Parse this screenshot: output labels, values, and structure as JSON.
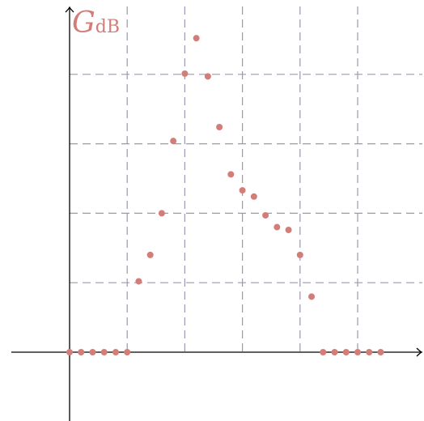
{
  "chart_data": {
    "type": "scatter",
    "ylabel_main": "G",
    "ylabel_sub": "dB",
    "xlabel": "",
    "title": "",
    "grid": true,
    "dot_color": "#d47d78",
    "grid_color": "#9a98b4",
    "axis_color": "#000000",
    "xlim": [
      -1,
      6.1
    ],
    "ylim": [
      -1,
      5
    ],
    "x_gridlines": [
      1,
      2,
      3,
      4,
      5
    ],
    "y_gridlines": [
      1,
      2,
      3,
      4
    ],
    "points": [
      {
        "x": 0.0,
        "y": 0
      },
      {
        "x": 0.2,
        "y": 0
      },
      {
        "x": 0.4,
        "y": 0
      },
      {
        "x": 0.6,
        "y": 0
      },
      {
        "x": 0.8,
        "y": 0
      },
      {
        "x": 1.0,
        "y": 0
      },
      {
        "x": 1.2,
        "y": 1.02
      },
      {
        "x": 1.4,
        "y": 1.4
      },
      {
        "x": 1.6,
        "y": 2.0
      },
      {
        "x": 1.8,
        "y": 3.04
      },
      {
        "x": 2.0,
        "y": 4.01
      },
      {
        "x": 2.2,
        "y": 4.52
      },
      {
        "x": 2.4,
        "y": 3.97
      },
      {
        "x": 2.6,
        "y": 3.24
      },
      {
        "x": 2.8,
        "y": 2.56
      },
      {
        "x": 3.0,
        "y": 2.33
      },
      {
        "x": 3.2,
        "y": 2.24
      },
      {
        "x": 3.4,
        "y": 1.97
      },
      {
        "x": 3.6,
        "y": 1.8
      },
      {
        "x": 3.8,
        "y": 1.76
      },
      {
        "x": 4.0,
        "y": 1.4
      },
      {
        "x": 4.2,
        "y": 0.8
      },
      {
        "x": 4.4,
        "y": 0
      },
      {
        "x": 4.6,
        "y": 0
      },
      {
        "x": 4.8,
        "y": 0
      },
      {
        "x": 5.0,
        "y": 0
      },
      {
        "x": 5.2,
        "y": 0
      },
      {
        "x": 5.4,
        "y": 0
      }
    ]
  }
}
